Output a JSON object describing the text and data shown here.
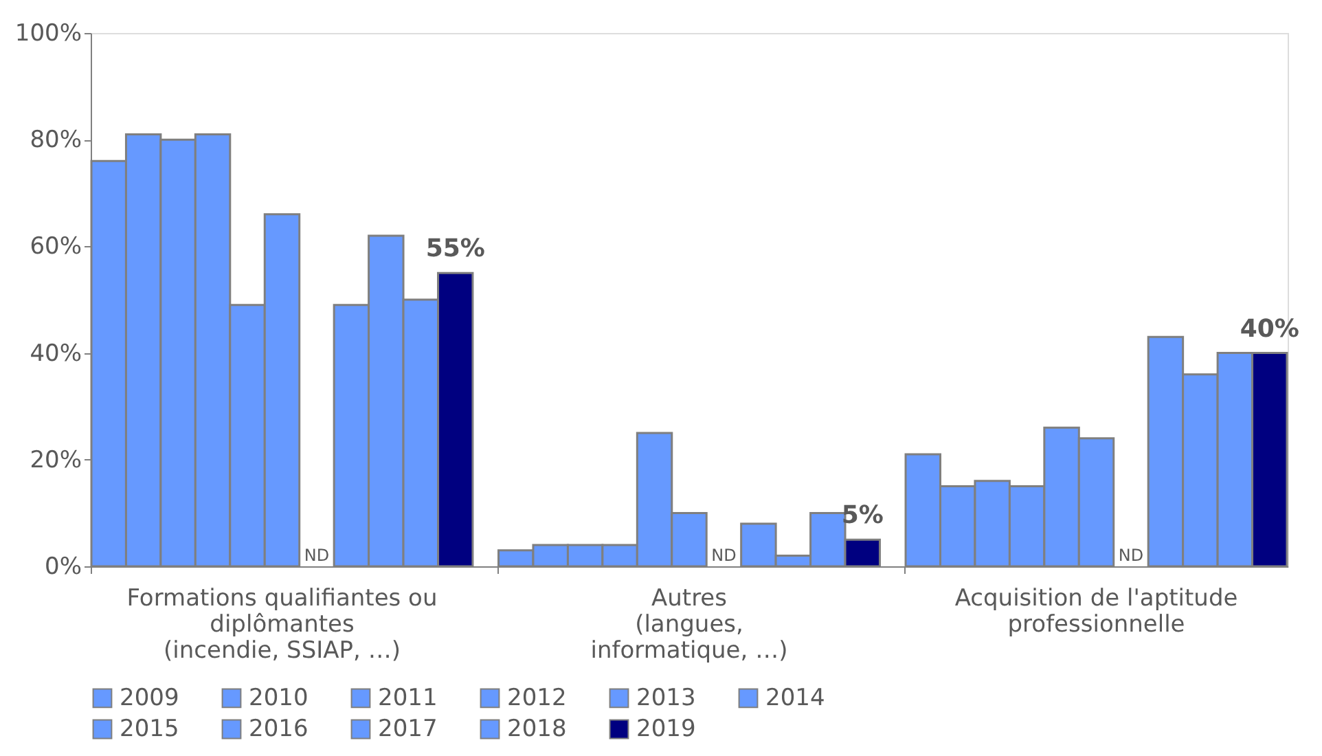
{
  "chart_data": {
    "type": "bar",
    "categories": [
      "Formations qualifiantes ou\ndiplômantes\n(incendie, SSIAP, …)",
      "Autres\n(langues,\ninformatique, …)",
      "Acquisition de l'aptitude\nprofessionnelle"
    ],
    "series": [
      {
        "name": "2009",
        "color": "#6699ff",
        "values": [
          76,
          3,
          21
        ]
      },
      {
        "name": "2010",
        "color": "#6699ff",
        "values": [
          81,
          4,
          15
        ]
      },
      {
        "name": "2011",
        "color": "#6699ff",
        "values": [
          80,
          4,
          16
        ]
      },
      {
        "name": "2012",
        "color": "#6699ff",
        "values": [
          81,
          4,
          15
        ]
      },
      {
        "name": "2013",
        "color": "#6699ff",
        "values": [
          49,
          25,
          26
        ]
      },
      {
        "name": "2014",
        "color": "#6699ff",
        "values": [
          66,
          10,
          24
        ]
      },
      {
        "name": "2015",
        "color": "#6699ff",
        "values": [
          null,
          null,
          null
        ],
        "value_labels": [
          "ND",
          "ND",
          "ND"
        ]
      },
      {
        "name": "2016",
        "color": "#6699ff",
        "values": [
          49,
          8,
          43
        ]
      },
      {
        "name": "2017",
        "color": "#6699ff",
        "values": [
          62,
          2,
          36
        ]
      },
      {
        "name": "2018",
        "color": "#6699ff",
        "values": [
          50,
          10,
          40
        ]
      },
      {
        "name": "2019",
        "color": "#000080",
        "values": [
          55,
          5,
          40
        ],
        "value_labels": [
          "55%",
          "5%",
          "40%"
        ]
      }
    ],
    "ylim": [
      0,
      100
    ],
    "yticks": [
      {
        "value": 0,
        "label": "0%"
      },
      {
        "value": 20,
        "label": "20%"
      },
      {
        "value": 40,
        "label": "40%"
      },
      {
        "value": 60,
        "label": "60%"
      },
      {
        "value": 80,
        "label": "80%"
      },
      {
        "value": 100,
        "label": "100%"
      }
    ],
    "grid": false,
    "legend": "bottom"
  }
}
